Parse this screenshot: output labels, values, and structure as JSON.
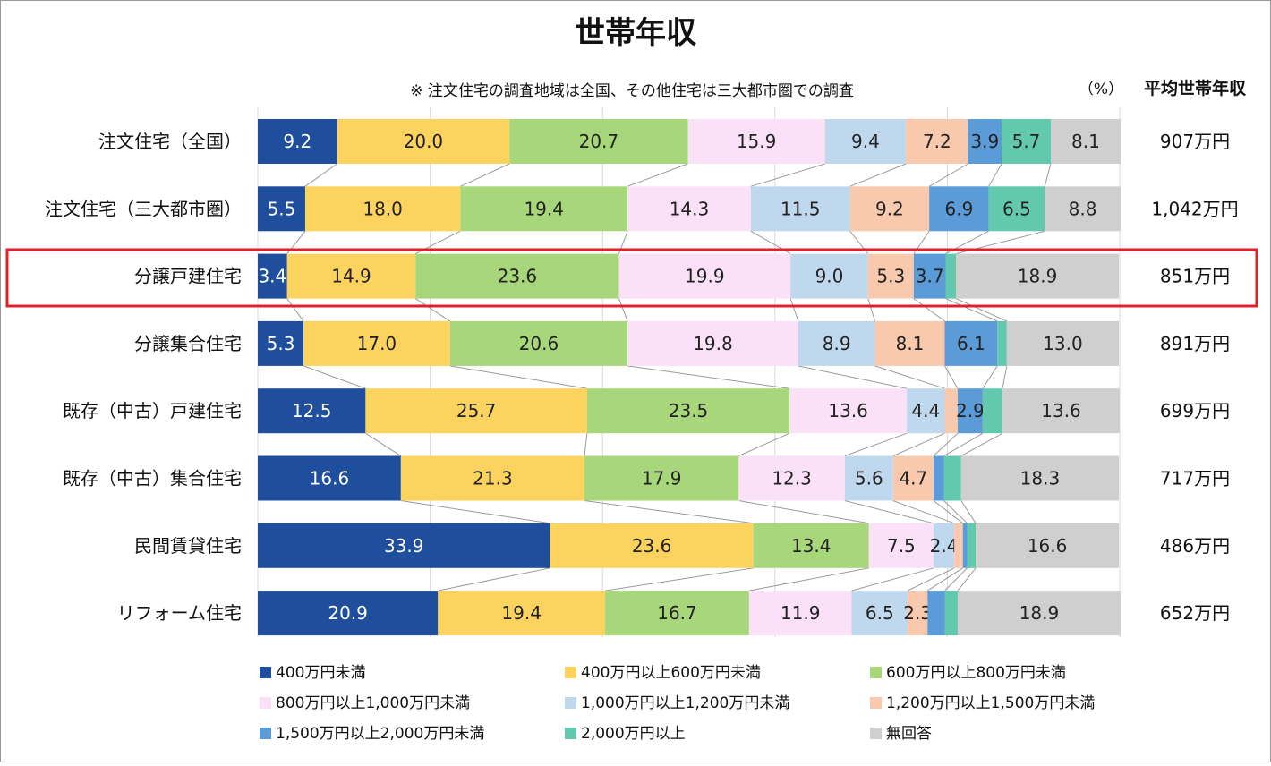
{
  "chart_data": {
    "type": "bar",
    "orientation": "horizontal",
    "stacked": true,
    "title": "世帯年収",
    "note": "※ 注文住宅の調査地域は全国、その他住宅は三大都市圏での調査",
    "unit_label": "（%）",
    "right_column_header": "平均世帯年収",
    "xlim": [
      0,
      100
    ],
    "grid": true,
    "legend_position": "bottom",
    "highlighted_category": "分譲戸建住宅",
    "highlight_color": "#e0202a",
    "categories": [
      "注文住宅（全国）",
      "注文住宅（三大都市圏）",
      "分譲戸建住宅",
      "分譲集合住宅",
      "既存（中古）戸建住宅",
      "既存（中古）集合住宅",
      "民間賃貸住宅",
      "リフォーム住宅"
    ],
    "average_income": [
      "907万円",
      "1,042万円",
      "851万円",
      "891万円",
      "699万円",
      "717万円",
      "486万円",
      "652万円"
    ],
    "series": [
      {
        "name": "400万円未満",
        "color": "#1f4e9c",
        "label_color": "#ffffff",
        "values": [
          9.2,
          5.5,
          3.4,
          5.3,
          12.5,
          16.6,
          33.9,
          20.9
        ]
      },
      {
        "name": "400万円以上600万円未満",
        "color": "#fbd35e",
        "label_color": "#222222",
        "values": [
          20.0,
          18.0,
          14.9,
          17.0,
          25.7,
          21.3,
          23.6,
          19.4
        ]
      },
      {
        "name": "600万円以上800万円未満",
        "color": "#a8d67a",
        "label_color": "#222222",
        "values": [
          20.7,
          19.4,
          23.6,
          20.6,
          23.5,
          17.9,
          13.4,
          16.7
        ]
      },
      {
        "name": "800万円以上1,000万円未満",
        "color": "#fbe1f8",
        "label_color": "#222222",
        "values": [
          15.9,
          14.3,
          19.9,
          19.8,
          13.6,
          12.3,
          7.5,
          11.9
        ]
      },
      {
        "name": "1,000万円以上1,200万円未満",
        "color": "#c0d8ee",
        "label_color": "#222222",
        "values": [
          9.4,
          11.5,
          9.0,
          8.9,
          4.4,
          5.6,
          2.4,
          6.5
        ]
      },
      {
        "name": "1,200万円以上1,500万円未満",
        "color": "#f8c9ac",
        "label_color": "#222222",
        "values": [
          7.2,
          9.2,
          5.3,
          8.1,
          1.5,
          4.7,
          1.0,
          2.3
        ]
      },
      {
        "name": "1,500万円以上2,000万円未満",
        "color": "#5b9bd8",
        "label_color": "#222222",
        "values": [
          3.9,
          6.9,
          3.7,
          6.1,
          2.9,
          1.2,
          0.5,
          2.0
        ]
      },
      {
        "name": "2,000万円以上",
        "color": "#62c9ae",
        "label_color": "#222222",
        "values": [
          5.7,
          6.5,
          1.2,
          1.1,
          2.3,
          2.0,
          1.0,
          1.5
        ]
      },
      {
        "name": "無回答",
        "color": "#d0cfcf",
        "label_color": "#222222",
        "values": [
          8.1,
          8.8,
          18.9,
          13.0,
          13.6,
          18.3,
          16.6,
          18.9
        ]
      }
    ],
    "data_labels": [
      [
        "9.2",
        "20.0",
        "20.7",
        "15.9",
        "9.4",
        "7.2",
        "3.9",
        "5.7",
        "8.1"
      ],
      [
        "5.5",
        "18.0",
        "19.4",
        "14.3",
        "11.5",
        "9.2",
        "6.9",
        "6.5",
        "8.8"
      ],
      [
        "3.4",
        "14.9",
        "23.6",
        "19.9",
        "9.0",
        "5.3",
        "3.7",
        "",
        "18.9"
      ],
      [
        "5.3",
        "17.0",
        "20.6",
        "19.8",
        "8.9",
        "8.1",
        "6.1",
        "",
        "13.0"
      ],
      [
        "12.5",
        "25.7",
        "23.5",
        "13.6",
        "4.4",
        "",
        "2.9",
        "",
        "13.6"
      ],
      [
        "16.6",
        "21.3",
        "17.9",
        "12.3",
        "5.6",
        "4.7",
        "",
        "",
        "18.3"
      ],
      [
        "33.9",
        "23.6",
        "13.4",
        "7.5",
        "2.4",
        "",
        "",
        "",
        "16.6"
      ],
      [
        "20.9",
        "19.4",
        "16.7",
        "11.9",
        "6.5",
        "2.3",
        "",
        "",
        "18.9"
      ]
    ]
  }
}
